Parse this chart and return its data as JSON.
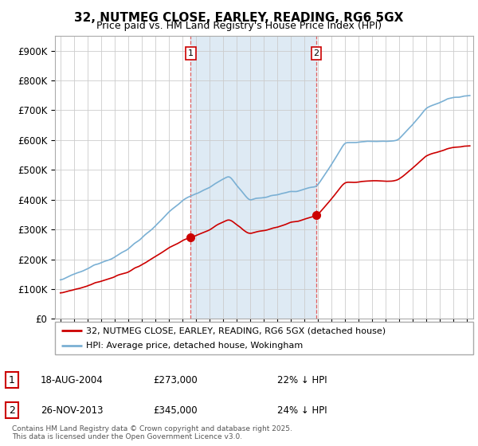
{
  "title": "32, NUTMEG CLOSE, EARLEY, READING, RG6 5GX",
  "subtitle": "Price paid vs. HM Land Registry's House Price Index (HPI)",
  "background_color": "#ffffff",
  "plot_bg_color": "#ffffff",
  "grid_color": "#cccccc",
  "red_line_color": "#cc0000",
  "blue_line_color": "#7ab0d4",
  "shade_color": "#deeaf4",
  "sale1_date": "18-AUG-2004",
  "sale1_price": 273000,
  "sale1_hpi": "22% ↓ HPI",
  "sale1_label": "1",
  "sale2_date": "26-NOV-2013",
  "sale2_price": 345000,
  "sale2_hpi": "24% ↓ HPI",
  "sale2_label": "2",
  "legend1": "32, NUTMEG CLOSE, EARLEY, READING, RG6 5GX (detached house)",
  "legend2": "HPI: Average price, detached house, Wokingham",
  "footer": "Contains HM Land Registry data © Crown copyright and database right 2025.\nThis data is licensed under the Open Government Licence v3.0.",
  "ylim": [
    0,
    950000
  ],
  "yticks": [
    0,
    100000,
    200000,
    300000,
    400000,
    500000,
    600000,
    700000,
    800000,
    900000
  ],
  "sale1_x": 2004.63,
  "sale2_x": 2013.9,
  "vline_color": "#e06060",
  "vline_style": "--",
  "title_fontsize": 11,
  "subtitle_fontsize": 9
}
